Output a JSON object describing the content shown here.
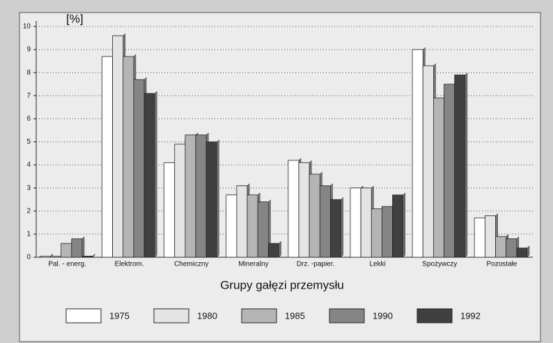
{
  "chart_data": {
    "type": "bar",
    "y_unit_label": "[%]",
    "x_axis_label": "Grupy gałęzi przemysłu",
    "categories": [
      "Pal. - energ.",
      "Elektrom.",
      "Chemiczny",
      "Mineralny",
      "Drz. -papier.",
      "Lekki",
      "Spożywczy",
      "Pozostałe"
    ],
    "series": [
      {
        "name": "1975",
        "color": "#ffffff",
        "values": [
          0.05,
          8.7,
          4.1,
          2.7,
          4.2,
          3.0,
          9.0,
          1.7
        ]
      },
      {
        "name": "1980",
        "color": "#e4e4e4",
        "values": [
          0.05,
          9.6,
          4.9,
          3.1,
          4.1,
          3.0,
          8.3,
          1.8
        ]
      },
      {
        "name": "1985",
        "color": "#b5b5b5",
        "values": [
          0.6,
          8.7,
          5.3,
          2.7,
          3.6,
          2.1,
          6.9,
          0.9
        ]
      },
      {
        "name": "1990",
        "color": "#858585",
        "values": [
          0.8,
          7.7,
          5.3,
          2.4,
          3.1,
          2.2,
          7.5,
          0.8
        ]
      },
      {
        "name": "1992",
        "color": "#404040",
        "values": [
          0.05,
          7.1,
          5.0,
          0.6,
          2.5,
          2.7,
          7.9,
          0.4
        ]
      }
    ],
    "ylim": [
      0,
      10
    ],
    "yticks": [
      0,
      1,
      2,
      3,
      4,
      5,
      6,
      7,
      8,
      9,
      10
    ],
    "grid": true
  }
}
